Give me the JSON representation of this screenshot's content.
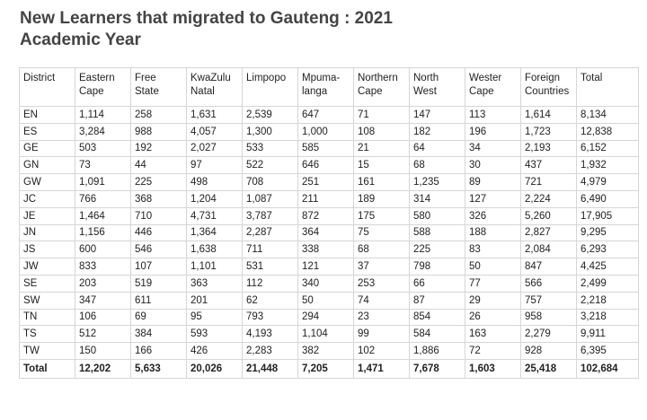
{
  "title": {
    "line1": "New Learners that migrated to Gauteng : 2021",
    "line2": "Academic Year"
  },
  "table": {
    "headers": [
      "District",
      "Eastern Cape",
      "Free State",
      "KwaZulu Natal",
      "Limpopo",
      "Mpuma-langa",
      "Northern Cape",
      "North West",
      "Wester Cape",
      "Foreign Countries",
      "Total"
    ],
    "rows": [
      [
        "EN",
        "1,114",
        "258",
        "1,631",
        "2,539",
        "647",
        "71",
        "147",
        "113",
        "1,614",
        "8,134"
      ],
      [
        "ES",
        "3,284",
        "988",
        "4,057",
        "1,300",
        "1,000",
        "108",
        "182",
        "196",
        "1,723",
        "12,838"
      ],
      [
        "GE",
        "503",
        "192",
        "2,027",
        "533",
        "585",
        "21",
        "64",
        "34",
        "2,193",
        "6,152"
      ],
      [
        "GN",
        "73",
        "44",
        "97",
        "522",
        "646",
        "15",
        "68",
        "30",
        "437",
        "1,932"
      ],
      [
        "GW",
        "1,091",
        "225",
        "498",
        "708",
        "251",
        "161",
        "1,235",
        "89",
        "721",
        "4,979"
      ],
      [
        "JC",
        "766",
        "368",
        "1,204",
        "1,087",
        "211",
        "189",
        "314",
        "127",
        "2,224",
        "6,490"
      ],
      [
        "JE",
        "1,464",
        "710",
        "4,731",
        "3,787",
        "872",
        "175",
        "580",
        "326",
        "5,260",
        "17,905"
      ],
      [
        "JN",
        "1,156",
        "446",
        "1,364",
        "2,287",
        "364",
        "75",
        "588",
        "188",
        "2,827",
        "9,295"
      ],
      [
        "JS",
        "600",
        "546",
        "1,638",
        "711",
        "338",
        "68",
        "225",
        "83",
        "2,084",
        "6,293"
      ],
      [
        "JW",
        "833",
        "107",
        "1,101",
        "531",
        "121",
        "37",
        "798",
        "50",
        "847",
        "4,425"
      ],
      [
        "SE",
        "203",
        "519",
        "363",
        "112",
        "340",
        "253",
        "66",
        "77",
        "566",
        "2,499"
      ],
      [
        "SW",
        "347",
        "611",
        "201",
        "62",
        "50",
        "74",
        "87",
        "29",
        "757",
        "2,218"
      ],
      [
        "TN",
        "106",
        "69",
        "95",
        "793",
        "294",
        "23",
        "854",
        "26",
        "958",
        "3,218"
      ],
      [
        "TS",
        "512",
        "384",
        "593",
        "4,193",
        "1,104",
        "99",
        "584",
        "163",
        "2,279",
        "9,911"
      ],
      [
        "TW",
        "150",
        "166",
        "426",
        "2,283",
        "382",
        "102",
        "1,886",
        "72",
        "928",
        "6,395"
      ]
    ],
    "total_row": [
      "Total",
      "12,202",
      "5,633",
      "20,026",
      "21,448",
      "7,205",
      "1,471",
      "7,678",
      "1,603",
      "25,418",
      "102,684"
    ]
  }
}
